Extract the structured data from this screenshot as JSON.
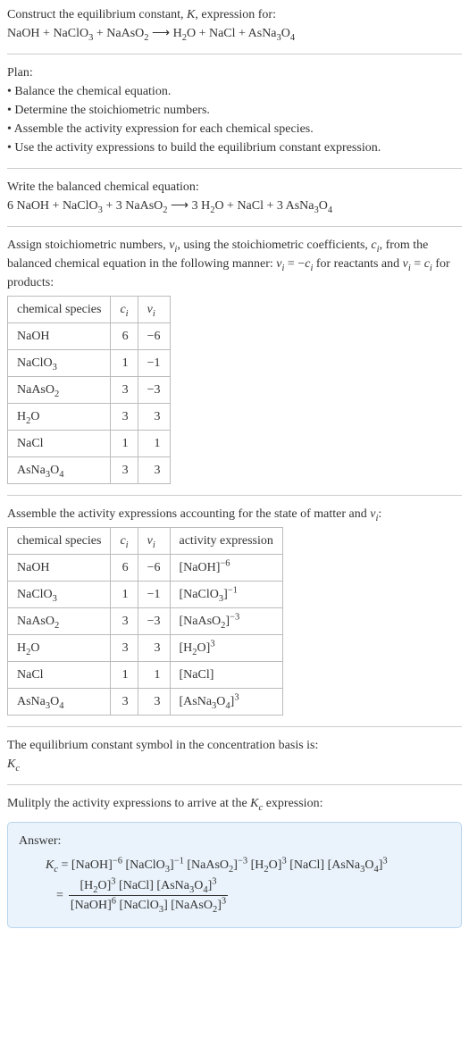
{
  "intro": {
    "title_prefix": "Construct the equilibrium constant, ",
    "title_K": "K",
    "title_suffix": ", expression for:",
    "equation_lhs": [
      "NaOH",
      "NaClO",
      "NaAsO"
    ],
    "equation_lhs_sub": [
      "",
      "3",
      "2"
    ],
    "arrow": " ⟶ ",
    "equation_rhs": [
      "H",
      "O",
      "NaCl",
      "AsNa",
      "O"
    ],
    "equation_rhs_text": "H₂O + NaCl + AsNa₃O₄"
  },
  "plan": {
    "heading": "Plan:",
    "items": [
      "• Balance the chemical equation.",
      "• Determine the stoichiometric numbers.",
      "• Assemble the activity expression for each chemical species.",
      "• Use the activity expressions to build the equilibrium constant expression."
    ]
  },
  "balanced": {
    "heading": "Write the balanced chemical equation:",
    "equation": "6 NaOH + NaClO₃ + 3 NaAsO₂ ⟶ 3 H₂O + NaCl + 3 AsNa₃O₄"
  },
  "assign": {
    "text1": "Assign stoichiometric numbers, ",
    "nu": "ν",
    "nu_sub": "i",
    "text2": ", using the stoichiometric coefficients, ",
    "c": "c",
    "c_sub": "i",
    "text3": ", from the balanced chemical equation in the following manner: ",
    "rel1": "νᵢ = −cᵢ",
    "text4": " for reactants and ",
    "rel2": "νᵢ = cᵢ",
    "text5": " for products:"
  },
  "table1": {
    "headers": [
      "chemical species",
      "cᵢ",
      "νᵢ"
    ],
    "rows": [
      [
        "NaOH",
        "6",
        "−6"
      ],
      [
        "NaClO₃",
        "1",
        "−1"
      ],
      [
        "NaAsO₂",
        "3",
        "−3"
      ],
      [
        "H₂O",
        "3",
        "3"
      ],
      [
        "NaCl",
        "1",
        "1"
      ],
      [
        "AsNa₃O₄",
        "3",
        "3"
      ]
    ]
  },
  "assemble_heading": "Assemble the activity expressions accounting for the state of matter and νᵢ:",
  "table2": {
    "headers": [
      "chemical species",
      "cᵢ",
      "νᵢ",
      "activity expression"
    ],
    "rows": [
      {
        "sp": "NaOH",
        "c": "6",
        "nu": "−6",
        "base": "[NaOH]",
        "exp": "−6"
      },
      {
        "sp": "NaClO₃",
        "c": "1",
        "nu": "−1",
        "base": "[NaClO₃]",
        "exp": "−1"
      },
      {
        "sp": "NaAsO₂",
        "c": "3",
        "nu": "−3",
        "base": "[NaAsO₂]",
        "exp": "−3"
      },
      {
        "sp": "H₂O",
        "c": "3",
        "nu": "3",
        "base": "[H₂O]",
        "exp": "3"
      },
      {
        "sp": "NaCl",
        "c": "1",
        "nu": "1",
        "base": "[NaCl]",
        "exp": ""
      },
      {
        "sp": "AsNa₃O₄",
        "c": "3",
        "nu": "3",
        "base": "[AsNa₃O₄]",
        "exp": "3"
      }
    ]
  },
  "symbol": {
    "line1": "The equilibrium constant symbol in the concentration basis is:",
    "Kc": "K",
    "Kc_sub": "c"
  },
  "multiply": {
    "text1": "Mulitply the activity expressions to arrive at the ",
    "Kc": "K",
    "Kc_sub": "c",
    "text2": " expression:"
  },
  "answer": {
    "label": "Answer:",
    "lhs": "K",
    "lhs_sub": "c",
    "eq": " = ",
    "terms": [
      {
        "base": "[NaOH]",
        "exp": "−6"
      },
      {
        "base": "[NaClO₃]",
        "exp": "−1"
      },
      {
        "base": "[NaAsO₂]",
        "exp": "−3"
      },
      {
        "base": "[H₂O]",
        "exp": "3"
      },
      {
        "base": "[NaCl]",
        "exp": ""
      },
      {
        "base": "[AsNa₃O₄]",
        "exp": "3"
      }
    ],
    "frac_num": [
      {
        "base": "[H₂O]",
        "exp": "3"
      },
      {
        "base": "[NaCl]",
        "exp": ""
      },
      {
        "base": "[AsNa₃O₄]",
        "exp": "3"
      }
    ],
    "frac_den": [
      {
        "base": "[NaOH]",
        "exp": "6"
      },
      {
        "base": "[NaClO₃]",
        "exp": ""
      },
      {
        "base": "[NaAsO₂]",
        "exp": "3"
      }
    ],
    "eq2_prefix": "= "
  },
  "colors": {
    "text": "#333333",
    "rule": "#cccccc",
    "table_border": "#bbbbbb",
    "answer_bg": "#eaf3fb",
    "answer_border": "#b8d6ee"
  }
}
